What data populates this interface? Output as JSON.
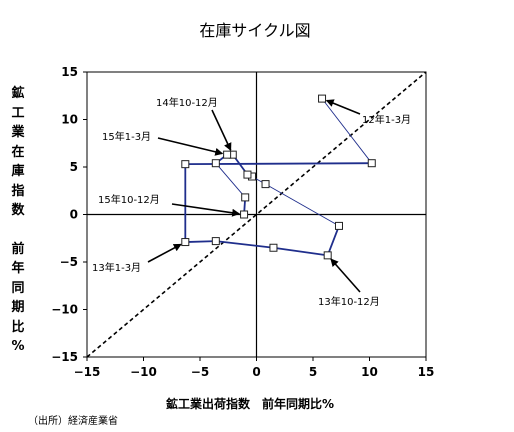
{
  "chart_data": {
    "type": "line",
    "title": "在庫サイクル図",
    "xlabel": "鉱工業出荷指数　前年同期比%",
    "ylabel_main": "鉱工業在庫指数",
    "ylabel_sub": "前年同期比%",
    "xlim": [
      -15,
      15
    ],
    "ylim": [
      -15,
      15
    ],
    "xticks": [
      -15,
      -10,
      -5,
      0,
      5,
      10,
      15
    ],
    "yticks": [
      -15,
      -10,
      -5,
      0,
      5,
      10,
      15
    ],
    "grid": false,
    "legend": "none",
    "reference_line": {
      "style": "dashed",
      "from": [
        -15,
        -15
      ],
      "to": [
        15,
        15
      ]
    },
    "series": [
      {
        "points": [
          {
            "x": 5.8,
            "y": 12.2
          },
          {
            "x": 10.2,
            "y": 5.4
          },
          {
            "x": -6.3,
            "y": 5.3
          },
          {
            "x": -6.3,
            "y": -2.9
          },
          {
            "x": -3.6,
            "y": -2.8
          },
          {
            "x": 1.5,
            "y": -3.5
          },
          {
            "x": 6.3,
            "y": -4.3
          },
          {
            "x": 7.3,
            "y": -1.2
          },
          {
            "x": 0.8,
            "y": 3.2
          },
          {
            "x": -0.4,
            "y": 4.0
          },
          {
            "x": -0.8,
            "y": 4.2
          },
          {
            "x": -2.1,
            "y": 6.3
          },
          {
            "x": -2.6,
            "y": 6.3
          },
          {
            "x": -3.6,
            "y": 5.4
          },
          {
            "x": -1.0,
            "y": 1.8
          },
          {
            "x": -1.1,
            "y": 0.0
          }
        ],
        "color": "#1f2e8c"
      }
    ],
    "annotations": [
      {
        "text": "12年1-3月",
        "point_index": 0
      },
      {
        "text": "13年1-3月",
        "point_index": 3
      },
      {
        "text": "13年10-12月",
        "point_index": 6
      },
      {
        "text": "14年10-12月",
        "point_index": 11
      },
      {
        "text": "15年1-3月",
        "point_index": 12
      },
      {
        "text": "15年10-12月",
        "point_index": 15
      }
    ]
  },
  "footer": {
    "source": "（出所）経済産業省"
  }
}
